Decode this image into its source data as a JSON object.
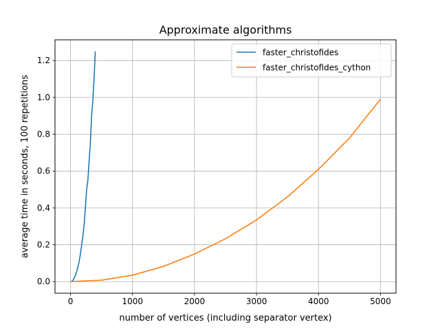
{
  "chart_data": {
    "type": "line",
    "title": "Approximate algorithms",
    "xlabel": "number of vertices (including separator vertex)",
    "ylabel": "average time in seconds, 100 repetitions",
    "xlim": [
      -250,
      5250
    ],
    "ylim": [
      -0.0625,
      1.3125
    ],
    "xticks": [
      0,
      1000,
      2000,
      3000,
      4000,
      5000
    ],
    "yticks": [
      0.0,
      0.2,
      0.4,
      0.6,
      0.8,
      1.0,
      1.2
    ],
    "xtick_labels": [
      "0",
      "1000",
      "2000",
      "3000",
      "4000",
      "5000"
    ],
    "ytick_labels": [
      "0.0",
      "0.2",
      "0.4",
      "0.6",
      "0.8",
      "1.0",
      "1.2"
    ],
    "grid": true,
    "legend_position": "top-right",
    "series": [
      {
        "name": "faster_christofides",
        "color": "#1f77b4",
        "x": [
          0,
          20,
          40,
          60,
          80,
          100,
          120,
          140,
          160,
          180,
          200,
          220,
          240,
          260,
          280,
          300,
          320,
          340,
          360,
          380,
          400
        ],
        "y": [
          0.0,
          0.002,
          0.008,
          0.02,
          0.035,
          0.055,
          0.08,
          0.11,
          0.15,
          0.2,
          0.25,
          0.31,
          0.4,
          0.5,
          0.55,
          0.65,
          0.75,
          0.9,
          0.98,
          1.1,
          1.25
        ]
      },
      {
        "name": "faster_christofides_cython",
        "color": "#ff7f0e",
        "x": [
          0,
          50,
          100,
          500,
          1000,
          1500,
          2000,
          2500,
          3000,
          3500,
          4000,
          4500,
          5000
        ],
        "y": [
          0.0,
          0.001,
          0.002,
          0.008,
          0.035,
          0.083,
          0.15,
          0.233,
          0.335,
          0.46,
          0.61,
          0.78,
          0.99
        ]
      }
    ]
  }
}
